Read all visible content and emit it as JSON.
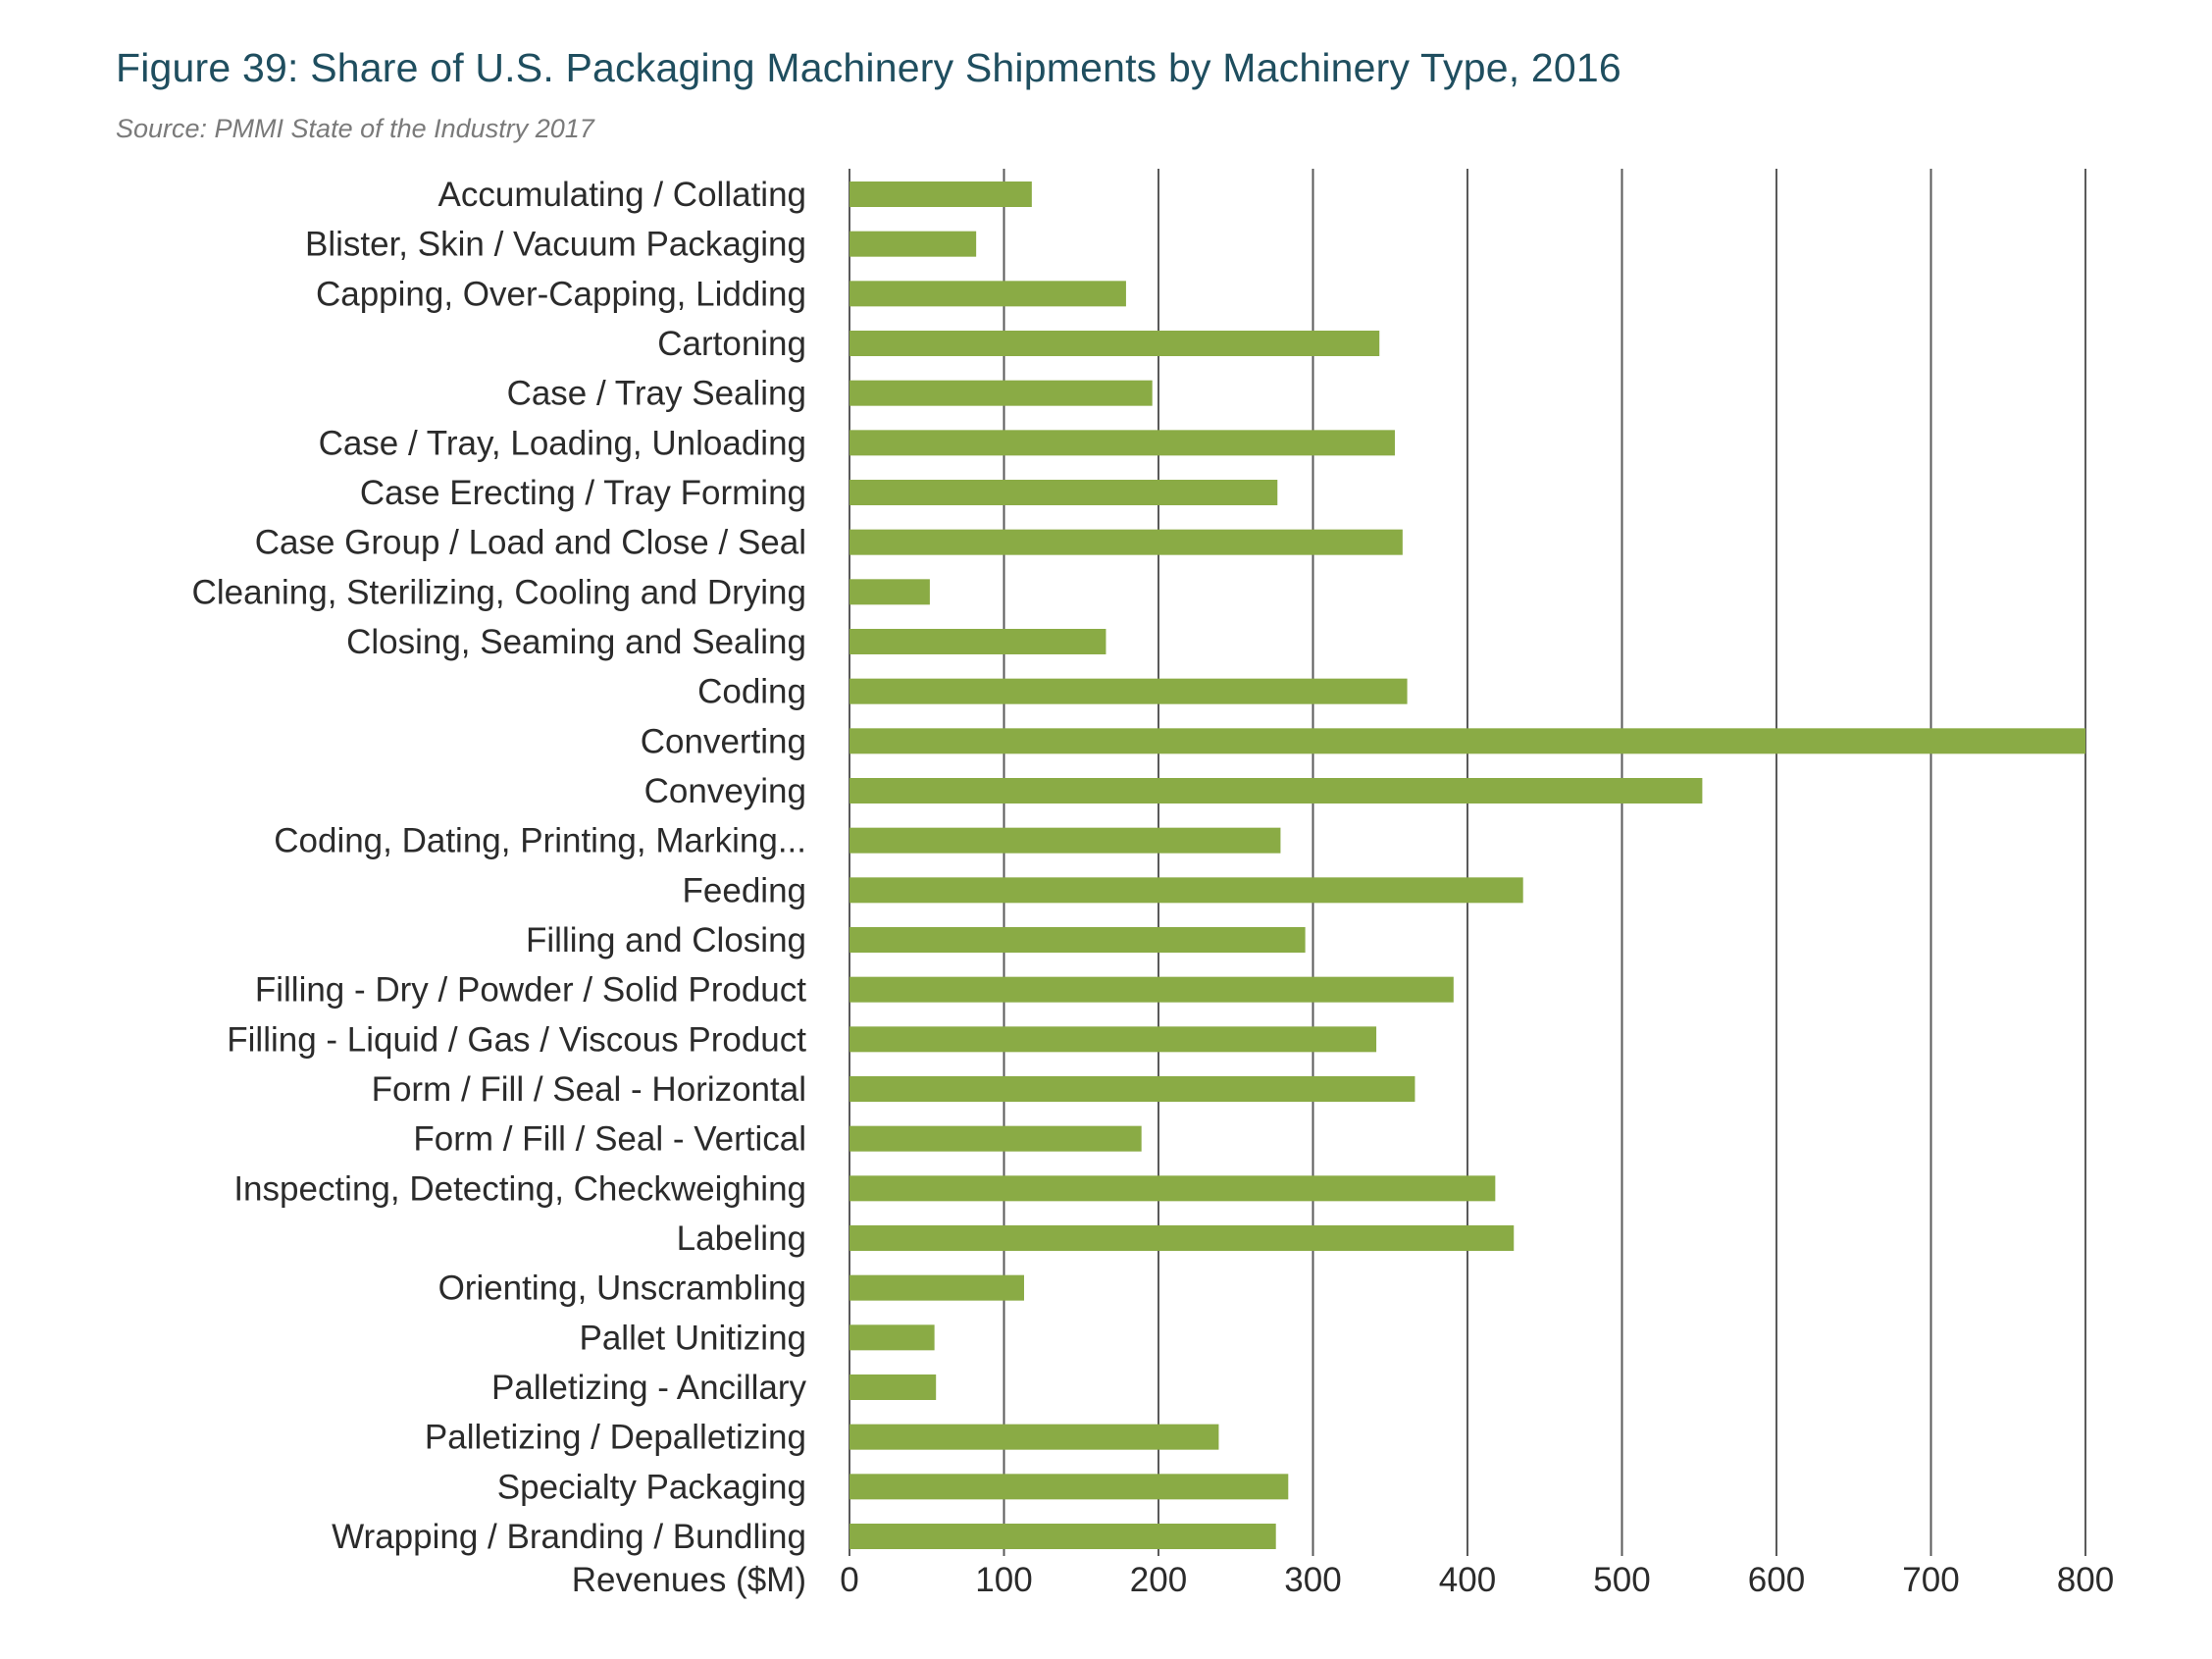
{
  "title": "Figure 39: Share of U.S. Packaging Machinery Shipments by Machinery Type, 2016",
  "subtitle": "Source: PMMI State of the Industry 2017",
  "colors": {
    "bar": "#8aab45",
    "grid": "#5a5a5a",
    "text": "#2b2b2b",
    "title": "#1f4e5f"
  },
  "chart_data": {
    "type": "bar",
    "orientation": "horizontal",
    "title": "Figure 39: Share of U.S. Packaging Machinery Shipments by Machinery Type, 2016",
    "subtitle": "Source: PMMI State of the Industry 2017",
    "xlabel": "Revenues ($M)",
    "ylabel": "",
    "xlim": [
      0,
      800
    ],
    "x_ticks": [
      0,
      100,
      200,
      300,
      400,
      500,
      600,
      700,
      800
    ],
    "grid": "vertical",
    "legend": "none",
    "categories": [
      "Accumulating / Collating",
      "Blister, Skin / Vacuum Packaging",
      "Capping, Over-Capping,  Lidding",
      "Cartoning",
      "Case / Tray Sealing",
      "Case / Tray, Loading, Unloading",
      "Case Erecting / Tray Forming",
      "Case Group / Load and Close / Seal",
      "Cleaning, Sterilizing, Cooling and Drying",
      "Closing, Seaming and Sealing",
      "Coding",
      "Converting",
      "Conveying",
      "Coding, Dating, Printing, Marking...",
      "Feeding",
      "Filling and Closing",
      "Filling - Dry / Powder / Solid Product",
      "Filling - Liquid / Gas / Viscous Product",
      "Form / Fill / Seal - Horizontal",
      "Form / Fill / Seal - Vertical",
      "Inspecting, Detecting, Checkweighing",
      "Labeling",
      "Orienting, Unscrambling",
      "Pallet Unitizing",
      "Palletizing - Ancillary",
      "Palletizing / Depalletizing",
      "Specialty Packaging",
      "Wrapping / Branding / Bundling"
    ],
    "values": [
      118,
      82,
      179,
      343,
      196,
      353,
      277,
      358,
      52,
      166,
      361,
      800,
      552,
      279,
      436,
      295,
      391,
      341,
      366,
      189,
      418,
      430,
      113,
      55,
      56,
      239,
      284,
      276
    ]
  }
}
